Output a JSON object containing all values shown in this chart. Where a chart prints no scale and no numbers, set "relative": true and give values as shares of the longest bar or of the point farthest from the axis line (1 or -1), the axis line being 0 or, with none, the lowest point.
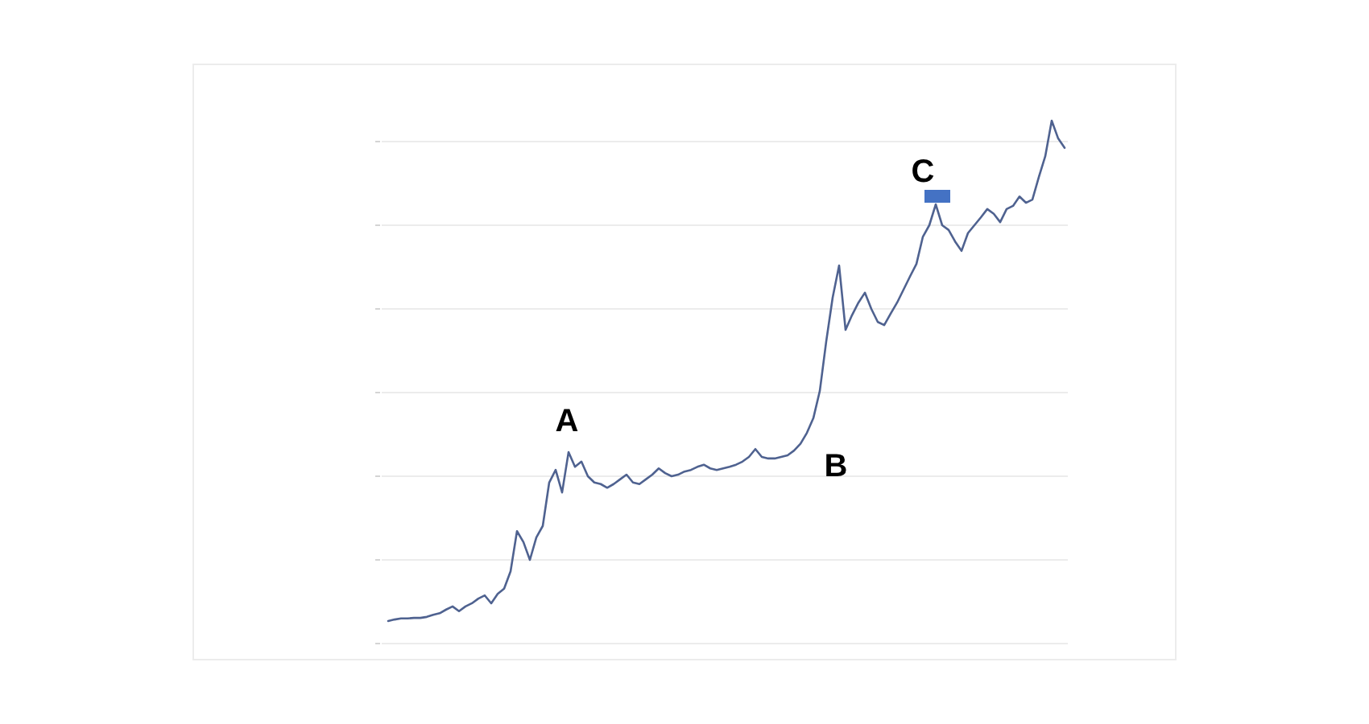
{
  "chart_data": {
    "type": "line",
    "relative": true,
    "categories": [
      null,
      null,
      null,
      null,
      null,
      null,
      null,
      null,
      null,
      null,
      null,
      null,
      null,
      null,
      null,
      null,
      null,
      null,
      null,
      null,
      null,
      null,
      null,
      null,
      null,
      null,
      null,
      null,
      null,
      null,
      null,
      null,
      null,
      null,
      null,
      null,
      null,
      null,
      null,
      null,
      null,
      null,
      null,
      null,
      null,
      null,
      null,
      null,
      null,
      null,
      null,
      null,
      null,
      null,
      null,
      null,
      null,
      null,
      null,
      null,
      null,
      null,
      null,
      null,
      null,
      null,
      null,
      null,
      null,
      null,
      null,
      null,
      null,
      null,
      null,
      null,
      null,
      null,
      null,
      null,
      null,
      null,
      null,
      null,
      null,
      null,
      null,
      null,
      null,
      null,
      null,
      null,
      null,
      null,
      null,
      null,
      null,
      null,
      null,
      null,
      null,
      null,
      null,
      null,
      null,
      null
    ],
    "values": [
      0.043,
      0.046,
      0.048,
      0.048,
      0.049,
      0.049,
      0.051,
      0.055,
      0.058,
      0.065,
      0.071,
      0.062,
      0.071,
      0.077,
      0.086,
      0.092,
      0.077,
      0.095,
      0.105,
      0.138,
      0.215,
      0.194,
      0.16,
      0.203,
      0.225,
      0.308,
      0.332,
      0.289,
      0.366,
      0.338,
      0.348,
      0.32,
      0.308,
      0.305,
      0.298,
      0.305,
      0.314,
      0.323,
      0.308,
      0.305,
      0.314,
      0.323,
      0.335,
      0.326,
      0.32,
      0.323,
      0.329,
      0.332,
      0.338,
      0.342,
      0.335,
      0.332,
      0.335,
      0.338,
      0.342,
      0.348,
      0.357,
      0.372,
      0.357,
      0.354,
      0.354,
      0.357,
      0.36,
      0.369,
      0.382,
      0.403,
      0.431,
      0.483,
      0.578,
      0.662,
      0.723,
      0.6,
      0.628,
      0.652,
      0.671,
      0.64,
      0.615,
      0.609,
      0.631,
      0.652,
      0.677,
      0.702,
      0.726,
      0.778,
      0.8,
      0.84,
      0.8,
      0.791,
      0.769,
      0.751,
      0.785,
      0.8,
      0.815,
      0.831,
      0.822,
      0.806,
      0.831,
      0.837,
      0.855,
      0.843,
      0.849,
      0.892,
      0.932,
      1,
      0.966,
      0.948
    ],
    "color": "#4f6290",
    "grid": "y",
    "annotations": [
      {
        "text": "A",
        "y": 0.366
      },
      "B",
      "C"
    ]
  }
}
